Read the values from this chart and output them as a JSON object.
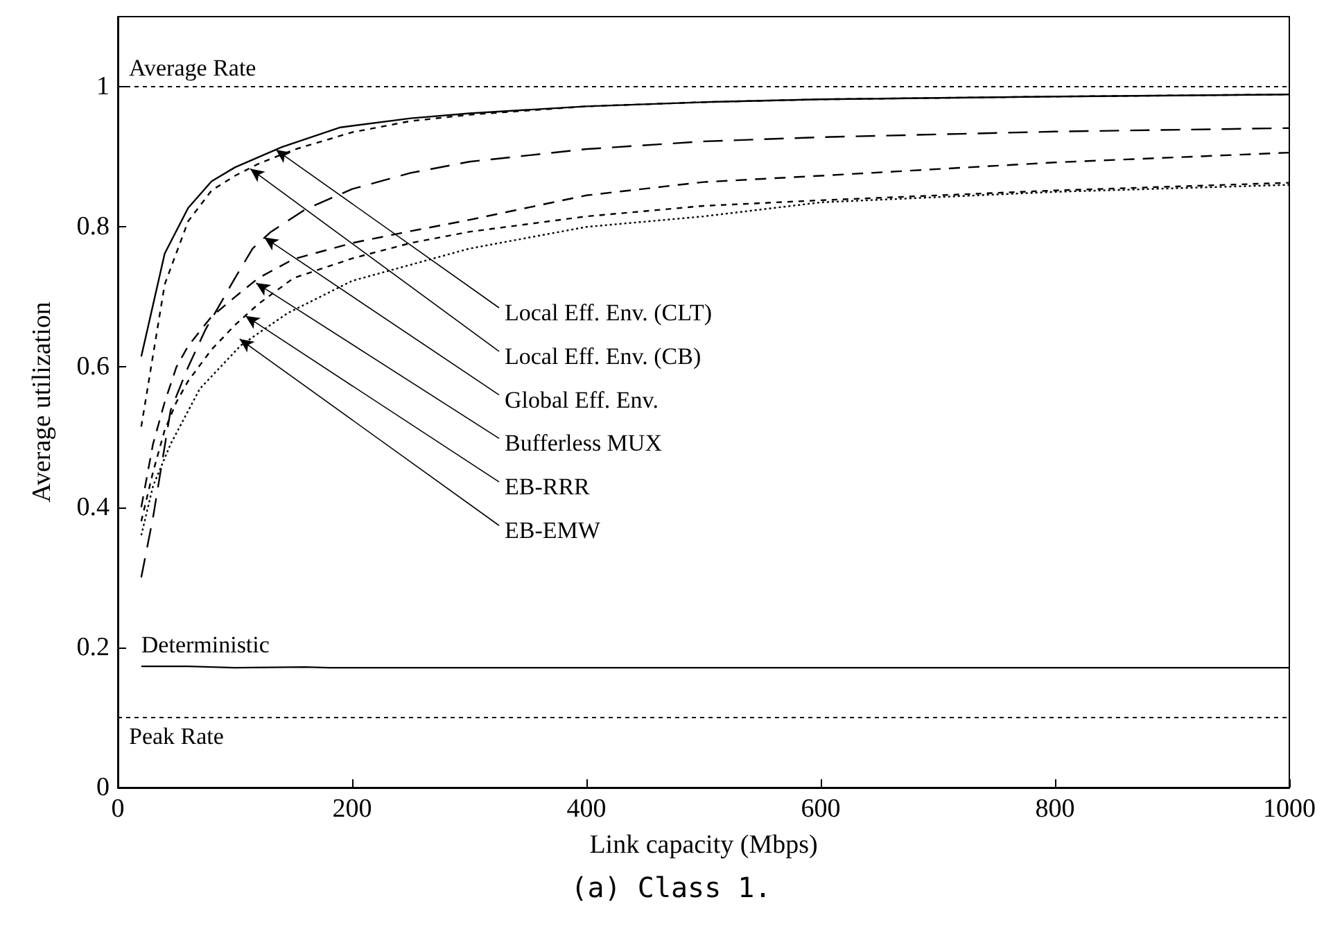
{
  "chart_data": {
    "type": "line",
    "xlabel": "Link capacity (Mbps)",
    "ylabel": "Average utilization",
    "xlim": [
      0,
      1000
    ],
    "xticks": [
      0,
      200,
      400,
      600,
      800,
      1000
    ],
    "ylim": [
      0,
      1.1
    ],
    "yticks": [
      0,
      0.2,
      0.4,
      0.6,
      0.8,
      1
    ],
    "grid": false,
    "legend": false,
    "series": [
      {
        "color": "#000000",
        "line_style": "solid",
        "x": [
          20,
          40,
          60,
          80,
          100,
          140,
          190,
          250,
          300,
          400,
          500,
          600,
          800,
          1000
        ],
        "values": [
          0.615,
          0.762,
          0.827,
          0.865,
          0.885,
          0.914,
          0.942,
          0.955,
          0.962,
          0.972,
          0.978,
          0.982,
          0.986,
          0.989
        ]
      },
      {
        "color": "#000000",
        "line_style": "dashed",
        "x": [
          20,
          40,
          60,
          80,
          100,
          120,
          150,
          200,
          250,
          300,
          400,
          500,
          600,
          800,
          1000
        ],
        "values": [
          0.515,
          0.718,
          0.808,
          0.852,
          0.873,
          0.89,
          0.91,
          0.935,
          0.951,
          0.96,
          0.972,
          0.978,
          0.982,
          0.986,
          0.989
        ]
      },
      {
        "color": "#000000",
        "line_style": "dashed",
        "x": [
          20,
          30,
          45,
          60,
          75,
          100,
          115,
          130,
          160,
          200,
          250,
          300,
          400,
          500,
          600,
          800,
          1000
        ],
        "values": [
          0.3,
          0.385,
          0.538,
          0.6,
          0.654,
          0.727,
          0.769,
          0.792,
          0.825,
          0.854,
          0.877,
          0.893,
          0.911,
          0.922,
          0.928,
          0.936,
          0.941
        ]
      },
      {
        "color": "#000000",
        "line_style": "dashed",
        "x": [
          20,
          30,
          40,
          50,
          60,
          80,
          100,
          120,
          150,
          200,
          250,
          300,
          400,
          500,
          600,
          800,
          1000
        ],
        "values": [
          0.4,
          0.49,
          0.55,
          0.6,
          0.63,
          0.672,
          0.7,
          0.727,
          0.754,
          0.777,
          0.794,
          0.81,
          0.845,
          0.864,
          0.873,
          0.892,
          0.906
        ]
      },
      {
        "color": "#000000",
        "line_style": "dashed",
        "x": [
          20,
          30,
          40,
          50,
          60,
          80,
          100,
          120,
          150,
          200,
          250,
          300,
          400,
          500,
          600,
          800,
          1000
        ],
        "values": [
          0.38,
          0.45,
          0.51,
          0.55,
          0.58,
          0.625,
          0.66,
          0.69,
          0.727,
          0.755,
          0.777,
          0.793,
          0.815,
          0.83,
          0.838,
          0.852,
          0.863
        ]
      },
      {
        "color": "#000000",
        "line_style": "dotted",
        "x": [
          20,
          30,
          45,
          70,
          105,
          145,
          200,
          300,
          400,
          500,
          600,
          800,
          1000
        ],
        "values": [
          0.36,
          0.43,
          0.49,
          0.569,
          0.631,
          0.677,
          0.723,
          0.769,
          0.8,
          0.815,
          0.835,
          0.85,
          0.86
        ]
      },
      {
        "name": "Deterministic",
        "color": "#000000",
        "line_style": "solid",
        "x": [
          20,
          60,
          100,
          160,
          180,
          300,
          1000
        ],
        "values": [
          0.173,
          0.173,
          0.171,
          0.172,
          0.171,
          0.171,
          0.171
        ]
      }
    ],
    "ref_lines": [
      {
        "axis": "y",
        "value": 1,
        "label": "Average Rate",
        "line_style": "dashed",
        "color": "#000000"
      },
      {
        "axis": "y",
        "value": 0.1,
        "label": "Peak Rate",
        "line_style": "dashed",
        "color": "#000000"
      }
    ],
    "annotations": [
      {
        "text": "Local Eff. Env. (CLT)",
        "x": 135,
        "y": 0.91
      },
      {
        "text": "Local Eff. Env. (CB)",
        "x": 113,
        "y": 0.883
      },
      {
        "text": "Global Eff. Env.",
        "x": 125,
        "y": 0.785
      },
      {
        "text": "Bufferless MUX",
        "x": 118,
        "y": 0.72
      },
      {
        "text": "EB-RRR",
        "x": 109,
        "y": 0.673
      },
      {
        "text": "EB-EMW",
        "x": 104,
        "y": 0.64
      },
      "(a) Class 1."
    ]
  }
}
